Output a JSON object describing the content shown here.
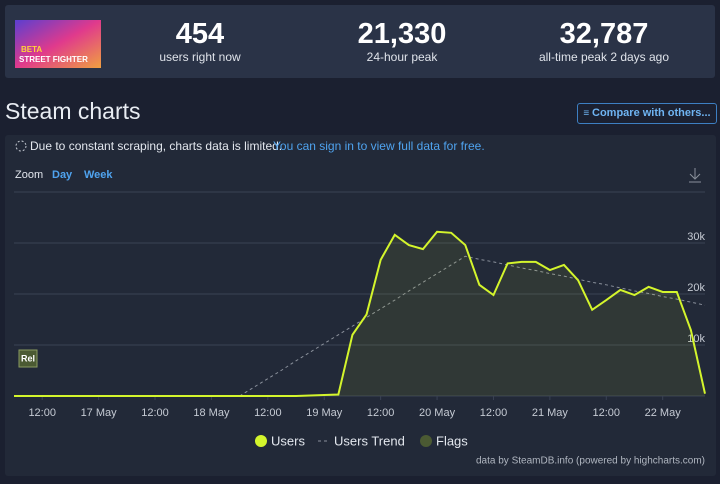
{
  "header": {
    "image_texts": [
      "BETA",
      "STREET FIGHTER"
    ],
    "stats": [
      {
        "value": "454",
        "label": "users right now"
      },
      {
        "value": "21,330",
        "label": "24-hour peak"
      },
      {
        "value": "32,787",
        "label": "all-time peak 2 days ago"
      }
    ]
  },
  "section_title": "Steam charts",
  "compare_button": "Compare with others...",
  "notice": "Due to constant scraping, charts data is limited.",
  "notice_link": "You can sign in to view full data for free.",
  "zoom": {
    "label": "Zoom",
    "options": [
      "Day",
      "Week"
    ]
  },
  "chart_data": {
    "type": "line",
    "categories": [
      null,
      null,
      "12:00",
      null,
      null,
      null,
      "17 May",
      null,
      null,
      null,
      "12:00",
      null,
      null,
      null,
      "18 May",
      null,
      null,
      null,
      "12:00",
      null,
      null,
      null,
      "19 May",
      null,
      null,
      null,
      "12:00",
      null,
      null,
      null,
      "20 May",
      null,
      null,
      null,
      "12:00",
      null,
      null,
      null,
      "21 May",
      null,
      null,
      null,
      "12:00",
      null,
      null,
      null,
      "22 May",
      null,
      null,
      null
    ],
    "series": [
      {
        "name": "Users",
        "color": "#d4f52c",
        "values": [
          0,
          0,
          0,
          0,
          0,
          0,
          0,
          0,
          0,
          0,
          0,
          0,
          0,
          0,
          0,
          0,
          0,
          0,
          0,
          0,
          0,
          100,
          200,
          300,
          12000,
          16000,
          26700,
          31600,
          29600,
          28800,
          32200,
          32000,
          29600,
          21800,
          19800,
          26000,
          26300,
          26300,
          24700,
          25700,
          22700,
          16900,
          18800,
          20800,
          19800,
          21400,
          20400,
          20400,
          12900,
          454
        ]
      },
      {
        "name": "Users Trend",
        "color": "#8a909b",
        "dashed": true,
        "values": [
          null,
          null,
          null,
          null,
          null,
          null,
          null,
          null,
          null,
          null,
          null,
          null,
          null,
          null,
          null,
          null,
          0,
          1700,
          3400,
          5100,
          6900,
          8600,
          10300,
          12000,
          13700,
          15400,
          17100,
          18800,
          20600,
          22300,
          24000,
          25700,
          27400,
          26800,
          26300,
          25700,
          25100,
          24600,
          24000,
          23500,
          22900,
          22300,
          21800,
          21200,
          20600,
          20100,
          19500,
          19000,
          18400,
          17800
        ]
      }
    ],
    "flags": {
      "name": "Flags",
      "color": "#4b5a33",
      "labels": [
        "Rel"
      ]
    },
    "ylim": [
      0,
      40000
    ],
    "yticks": [
      {
        "value": 10000,
        "label": "10k"
      },
      {
        "value": 20000,
        "label": "20k"
      },
      {
        "value": 30000,
        "label": "30k"
      }
    ],
    "grid": true
  },
  "credit": "data by SteamDB.info (powered by highcharts.com)"
}
